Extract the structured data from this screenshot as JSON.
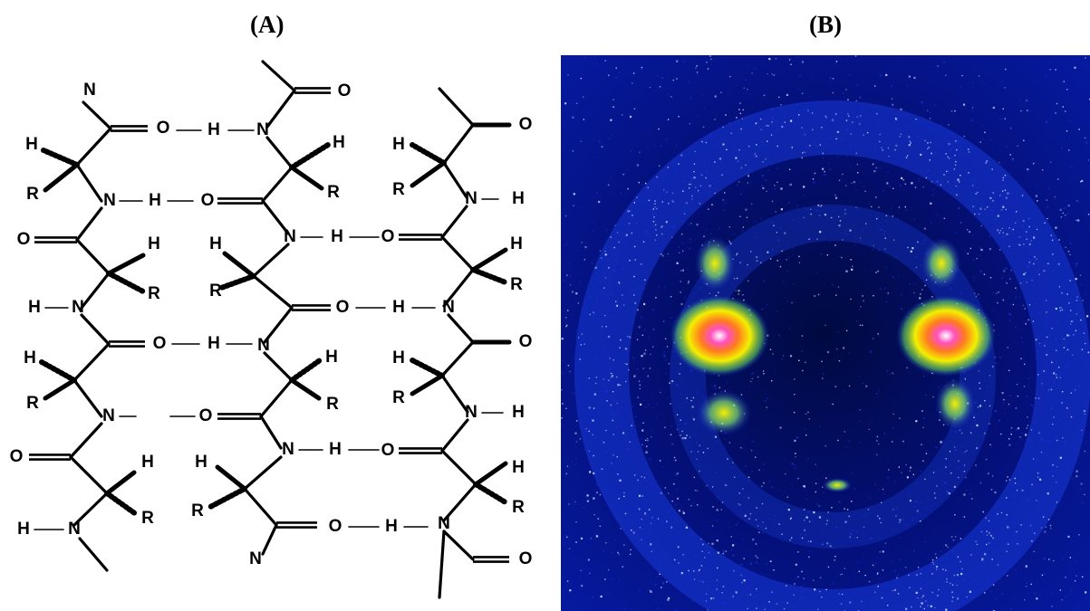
{
  "panels": {
    "a": {
      "label": "(A)"
    },
    "b": {
      "label": "(B)"
    }
  },
  "structure": {
    "atoms": {
      "nitrogen": "N",
      "oxygen": "O",
      "hydrogen": "H",
      "side_chain": "R"
    }
  },
  "diffraction": {
    "colors": {
      "background": "#020a55",
      "mid": "#1530d0",
      "speckle": "#c8d8ff",
      "hot_yellow": "#f4f000",
      "hot_orange": "#ff7a20",
      "hot_magenta": "#ff50c0"
    }
  }
}
